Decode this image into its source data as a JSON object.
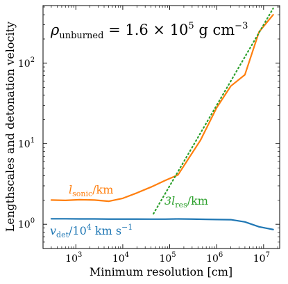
{
  "chart_data": {
    "type": "line",
    "title": "ρ_unburned = 1.6 × 10^5 g cm^-3",
    "title_parts": {
      "rho": "ρ",
      "sub": "unburned",
      "eq": " = 1.6 × 10",
      "exp": "5",
      "unit": " g cm",
      "unit_exp": "−3"
    },
    "xlabel": "Minimum resolution [cm]",
    "ylabel": "Lengthscales and detonation velocity",
    "xscale": "log",
    "yscale": "log",
    "xlim": [
      200,
      22000000
    ],
    "ylim": [
      0.5,
      520
    ],
    "x_tick_values": [
      1000,
      10000,
      100000,
      1000000,
      10000000
    ],
    "x_tick_labels": [
      {
        "base": "10",
        "exp": "3"
      },
      {
        "base": "10",
        "exp": "4"
      },
      {
        "base": "10",
        "exp": "5"
      },
      {
        "base": "10",
        "exp": "6"
      },
      {
        "base": "10",
        "exp": "7"
      }
    ],
    "y_tick_values": [
      1,
      10,
      100
    ],
    "y_tick_labels": [
      {
        "base": "10",
        "exp": "0"
      },
      {
        "base": "10",
        "exp": "1"
      },
      {
        "base": "10",
        "exp": "2"
      }
    ],
    "grid": false,
    "legend": "inline labels",
    "series": [
      {
        "name": "l_sonic/km",
        "label_parts": {
          "main": "l",
          "sub": "sonic",
          "rest": "/km"
        },
        "color": "#ff7f0e",
        "style": "solid",
        "x": [
          300,
          600,
          1200,
          2500,
          5000,
          10000,
          20000,
          40000,
          80000,
          150000,
          250000,
          450000,
          1000000,
          2000000,
          4000000,
          8000000,
          16000000
        ],
        "y": [
          2.0,
          1.98,
          2.02,
          2.0,
          1.93,
          2.1,
          2.45,
          2.9,
          3.5,
          4.1,
          6.5,
          11,
          28,
          52,
          72,
          245,
          400
        ]
      },
      {
        "name": "3l_res/km",
        "label_parts": {
          "main": "3l",
          "sub": "res",
          "rest": "/km"
        },
        "color": "#2ca02c",
        "style": "dotted",
        "x": [
          45000,
          16000000
        ],
        "y": [
          1.35,
          480
        ]
      },
      {
        "name": "v_det/10^4 km s^-1",
        "label_parts": {
          "main": "v",
          "sub": "det",
          "rest": "/10",
          "exp": "4",
          "unit": " km s",
          "unit_exp": "−1"
        },
        "color": "#1f77b4",
        "style": "solid",
        "x": [
          300,
          600,
          1200,
          2500,
          5000,
          10000,
          20000,
          40000,
          80000,
          150000,
          300000,
          600000,
          1000000,
          2000000,
          4000000,
          8000000,
          16000000
        ],
        "y": [
          1.17,
          1.17,
          1.165,
          1.165,
          1.16,
          1.16,
          1.16,
          1.158,
          1.158,
          1.165,
          1.16,
          1.15,
          1.145,
          1.14,
          1.07,
          0.93,
          0.86
        ]
      }
    ]
  }
}
